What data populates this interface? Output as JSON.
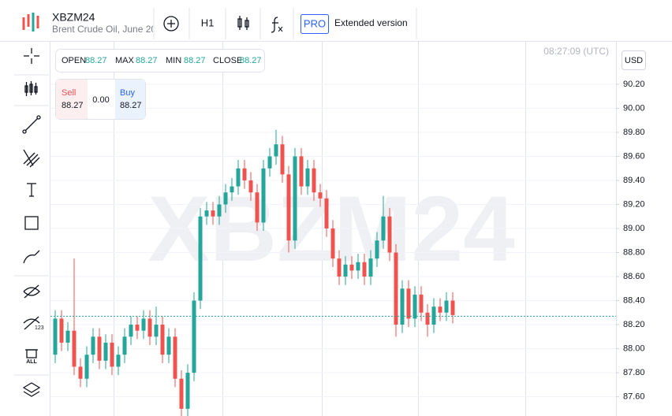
{
  "header": {
    "symbol": "XBZM24",
    "description": "Brent Crude Oil, June 20",
    "timeframe": "H1",
    "pro_badge": "PRO",
    "pro_text": "Extended version"
  },
  "left_toolbar": {
    "hide_badge": "123",
    "remove_badge": "ALL"
  },
  "ohlc_panel": {
    "open_label": "OPEN",
    "open": "88.27",
    "max_label": "MAX",
    "max": "88.27",
    "min_label": "MIN",
    "min": "88.27",
    "close_label": "CLOSE",
    "close": "88.27"
  },
  "trade_panel": {
    "sell_label": "Sell",
    "sell": "88.27",
    "spread": "0.00",
    "buy_label": "Buy",
    "buy": "88.27"
  },
  "clock": "08:27:09 (UTC)",
  "currency": "USD",
  "watermark": "XBZM24",
  "chart_data": {
    "type": "candlestick",
    "open": [
      87.95,
      88.25,
      88.05,
      88.15,
      87.85,
      87.75,
      87.95,
      88.1,
      87.9,
      88.05,
      87.85,
      87.95,
      88.1,
      88.2,
      88.15,
      88.25,
      88.1,
      88.2,
      87.95,
      88.1,
      87.75,
      87.5,
      87.8,
      88.4,
      89.1,
      89.15,
      89.1,
      89.2,
      89.3,
      89.35,
      89.5,
      89.4,
      89.3,
      89.05,
      89.5,
      89.6,
      89.7,
      89.45,
      88.9,
      89.6,
      89.35,
      89.5,
      89.3,
      89.25,
      89.0,
      88.75,
      88.6,
      88.7,
      88.65,
      88.72,
      88.6,
      88.75,
      88.9,
      89.1,
      88.8,
      88.2,
      88.5,
      88.25,
      88.45,
      88.3,
      88.2,
      88.35,
      88.3,
      88.4
    ],
    "high": [
      88.32,
      88.32,
      88.22,
      88.75,
      87.92,
      88.02,
      88.17,
      88.17,
      88.12,
      88.12,
      88.02,
      88.17,
      88.27,
      88.27,
      88.32,
      88.32,
      88.35,
      88.27,
      88.17,
      88.17,
      87.82,
      87.87,
      88.47,
      89.17,
      89.22,
      89.22,
      89.27,
      89.37,
      89.42,
      89.57,
      89.57,
      89.47,
      89.37,
      89.57,
      89.67,
      89.82,
      89.77,
      89.52,
      89.67,
      89.67,
      89.57,
      89.57,
      89.37,
      89.32,
      89.07,
      88.82,
      88.77,
      88.77,
      88.79,
      88.79,
      88.82,
      88.97,
      89.27,
      89.17,
      88.87,
      88.57,
      88.57,
      88.52,
      88.52,
      88.37,
      88.42,
      88.42,
      88.47,
      88.47
    ],
    "low": [
      87.88,
      87.98,
      87.98,
      87.78,
      87.68,
      87.68,
      87.88,
      87.83,
      87.83,
      87.78,
      87.78,
      87.88,
      88.03,
      88.08,
      88.08,
      88.03,
      88.03,
      87.88,
      87.88,
      87.68,
      87.38,
      87.43,
      87.73,
      88.33,
      89.03,
      89.03,
      89.03,
      89.13,
      89.23,
      89.28,
      89.33,
      89.23,
      88.98,
      88.98,
      89.43,
      89.53,
      89.38,
      88.8,
      88.83,
      89.28,
      89.28,
      89.23,
      89.18,
      88.93,
      88.68,
      88.53,
      88.53,
      88.58,
      88.58,
      88.53,
      88.53,
      88.68,
      88.83,
      88.73,
      88.1,
      88.13,
      88.18,
      88.18,
      88.23,
      88.1,
      88.13,
      88.23,
      88.23,
      88.21
    ],
    "close": [
      88.25,
      88.05,
      88.15,
      87.85,
      87.75,
      87.95,
      88.1,
      87.9,
      88.05,
      87.85,
      87.95,
      88.1,
      88.2,
      88.15,
      88.25,
      88.1,
      88.2,
      87.95,
      88.1,
      87.75,
      87.5,
      87.8,
      88.4,
      89.1,
      89.15,
      89.1,
      89.2,
      89.3,
      89.35,
      89.5,
      89.4,
      89.3,
      89.05,
      89.5,
      89.6,
      89.7,
      89.45,
      88.9,
      89.6,
      89.35,
      89.5,
      89.3,
      89.25,
      89.0,
      88.75,
      88.6,
      88.7,
      88.65,
      88.72,
      88.6,
      88.75,
      88.9,
      89.1,
      88.8,
      88.2,
      88.5,
      88.25,
      88.45,
      88.3,
      88.2,
      88.35,
      88.3,
      88.4,
      88.28
    ],
    "up_color": "#26a69a",
    "down_color": "#ef5350",
    "last_price": 88.27,
    "ylim": [
      87.44,
      90.56
    ],
    "yticks": [
      {
        "value": 87.6,
        "label": "87.60"
      },
      {
        "value": 87.8,
        "label": "87.80"
      },
      {
        "value": 88.0,
        "label": "88.00"
      },
      {
        "value": 88.2,
        "label": "88.20"
      },
      {
        "value": 88.4,
        "label": "88.40"
      },
      {
        "value": 88.6,
        "label": "88.60"
      },
      {
        "value": 88.8,
        "label": "88.80"
      },
      {
        "value": 89.0,
        "label": "89.00"
      },
      {
        "value": 89.2,
        "label": "89.20"
      },
      {
        "value": 89.4,
        "label": "89.40"
      },
      {
        "value": 89.6,
        "label": "89.60"
      },
      {
        "value": 89.8,
        "label": "89.80"
      },
      {
        "value": 90.0,
        "label": "90.00"
      },
      {
        "value": 90.2,
        "label": "90.20"
      }
    ],
    "grid": true
  }
}
